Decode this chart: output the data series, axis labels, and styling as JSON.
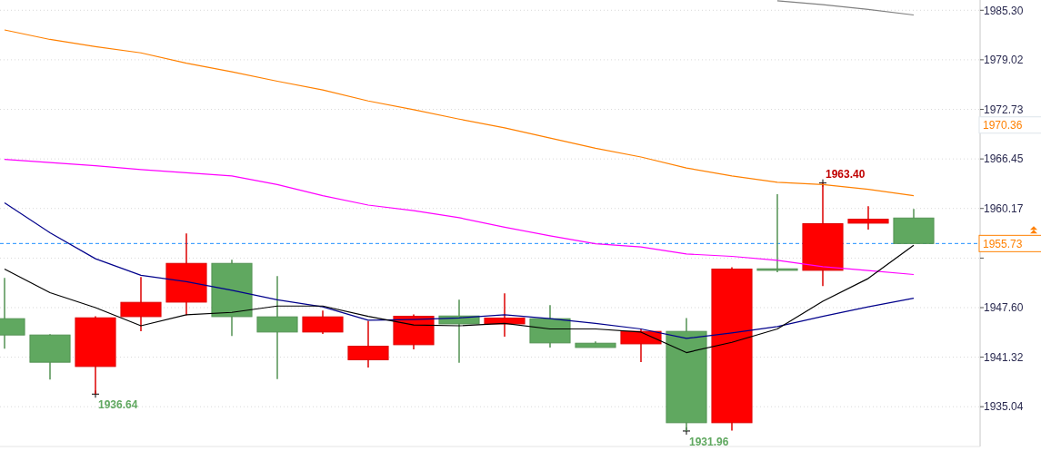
{
  "chart_data": {
    "type": "candlestick",
    "categories": [
      null,
      null,
      null,
      null,
      null,
      null,
      null,
      null,
      null,
      null,
      null,
      null,
      null,
      null,
      null,
      null,
      null,
      null,
      null,
      null,
      null
    ],
    "ohlc": [
      [
        1946.2,
        1951.37,
        1942.4,
        1944.13
      ],
      [
        1944.13,
        1944.24,
        1938.49,
        1940.68
      ],
      [
        1940.14,
        1946.5,
        1936.64,
        1946.31
      ],
      [
        1946.46,
        1951.49,
        1944.62,
        1948.27
      ],
      [
        1948.3,
        1957.01,
        1946.62,
        1953.21
      ],
      [
        1953.21,
        1953.67,
        1944.01,
        1946.46
      ],
      [
        1946.43,
        1951.6,
        1938.53,
        1944.51
      ],
      [
        1944.51,
        1947.23,
        1944.27,
        1946.43
      ],
      [
        1940.99,
        1945.89,
        1940.02,
        1942.71
      ],
      [
        1942.9,
        1946.74,
        1942.32,
        1946.51
      ],
      [
        1946.54,
        1948.61,
        1940.6,
        1945.54
      ],
      [
        1945.54,
        1949.42,
        1943.93,
        1946.28
      ],
      [
        1946.2,
        1947.92,
        1942.55,
        1943.13
      ],
      [
        1943.09,
        1943.32,
        1942.55,
        1942.55
      ],
      [
        1943.01,
        1944.85,
        1940.71,
        1944.59
      ],
      [
        1944.59,
        1946.28,
        1931.96,
        1933.01
      ],
      [
        1933.01,
        1952.72,
        1932.0,
        1952.49
      ],
      [
        1952.52,
        1961.99,
        1952.1,
        1952.33
      ],
      [
        1952.33,
        1963.4,
        1950.34,
        1958.24
      ],
      [
        1958.31,
        1960.46,
        1957.5,
        1958.81
      ],
      [
        1958.96,
        1960.11,
        1955.73,
        1955.73
      ]
    ],
    "colors": [
      "#60a860",
      "#60a860",
      "#ff0000",
      "#ff0000",
      "#ff0000",
      "#60a860",
      "#60a860",
      "#ff0000",
      "#ff0000",
      "#ff0000",
      "#60a860",
      "#ff0000",
      "#60a860",
      "#60a860",
      "#ff0000",
      "#60a860",
      "#ff0000",
      "#60a860",
      "#ff0000",
      "#ff0000",
      "#60a860"
    ],
    "series": [
      {
        "type": "line",
        "color": "#ff8000",
        "values": [
          1982.8,
          1981.6,
          1980.7,
          1979.9,
          1978.6,
          1977.5,
          1976.3,
          1975.2,
          1973.8,
          1972.7,
          1971.5,
          1970.4,
          1969.1,
          1967.8,
          1966.7,
          1965.3,
          1964.3,
          1963.5,
          1963.2,
          1962.6,
          1961.8
        ]
      },
      {
        "type": "line",
        "color": "#ff00ff",
        "values": [
          1966.4,
          1966.0,
          1965.6,
          1965.1,
          1964.7,
          1964.3,
          1963.2,
          1961.8,
          1960.6,
          1959.9,
          1959.0,
          1957.8,
          1956.7,
          1955.7,
          1955.3,
          1954.4,
          1954.1,
          1953.6,
          1952.8,
          1952.3,
          1951.8
        ]
      },
      {
        "type": "line",
        "color": "#00008b",
        "values": [
          1960.9,
          1957.1,
          1953.8,
          1951.7,
          1950.9,
          1949.8,
          1948.6,
          1947.7,
          1946.0,
          1946.1,
          1946.3,
          1946.7,
          1946.2,
          1945.6,
          1944.9,
          1943.7,
          1944.4,
          1945.2,
          1946.5,
          1947.7,
          1948.8
        ]
      },
      {
        "type": "line",
        "color": "#000000",
        "values": [
          1952.5,
          1949.5,
          1947.6,
          1945.3,
          1946.7,
          1947.0,
          1947.8,
          1947.8,
          1946.5,
          1945.4,
          1945.3,
          1945.6,
          1944.9,
          1944.9,
          1944.5,
          1941.9,
          1943.2,
          1944.9,
          1948.4,
          1951.3,
          1955.5
        ]
      },
      {
        "type": "line",
        "color": "#808080",
        "values": [
          null,
          null,
          null,
          null,
          null,
          null,
          null,
          null,
          null,
          null,
          null,
          null,
          null,
          null,
          null,
          null,
          null,
          1986.5,
          1986.0,
          1985.4,
          1984.7
        ]
      }
    ],
    "ylim": [
      1930.0,
      1986.6
    ],
    "yticks": [
      1935.04,
      1941.32,
      {
        "value": 1947.6,
        "label": "1947.60"
      },
      {
        "value": 1953.88,
        "label": null
      },
      1960.17,
      1966.45,
      1972.73,
      1979.02,
      {
        "value": 1985.3,
        "label": "1985.30"
      }
    ],
    "grid": "y",
    "ref_lines": [
      {
        "axis": "y",
        "value": 1955.73,
        "label": "1955.73",
        "color": "#1e90ff",
        "line_style": "dashed"
      }
    ],
    "annotations": [
      {
        "text": "1963.40",
        "y": 1963.4
      },
      "1936.64",
      "1931.96",
      "1970.36"
    ]
  }
}
